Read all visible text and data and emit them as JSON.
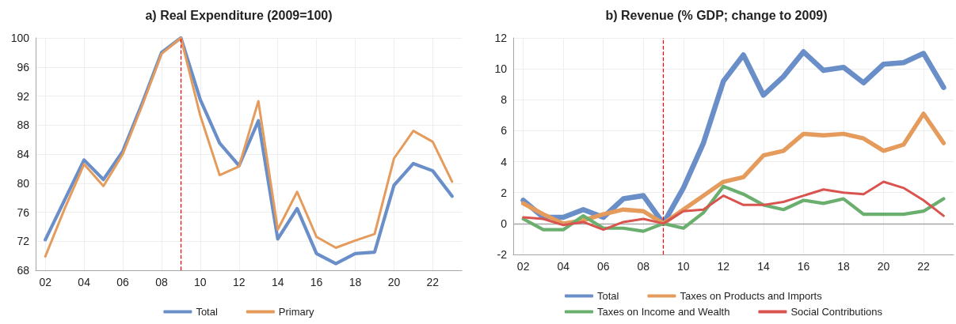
{
  "chart_data": [
    {
      "type": "line",
      "title": "a) Real Expenditure (2009=100)",
      "x": [
        2002,
        2003,
        2004,
        2005,
        2006,
        2007,
        2008,
        2009,
        2010,
        2011,
        2012,
        2013,
        2014,
        2015,
        2016,
        2017,
        2018,
        2019,
        2020,
        2021,
        2022,
        2023
      ],
      "series": [
        {
          "name": "Total",
          "color": "#6a8fc8",
          "values": [
            72.2,
            77.7,
            83.2,
            80.5,
            84.4,
            91,
            98,
            100,
            91.5,
            85.5,
            82.4,
            88.6,
            72.3,
            76.5,
            70.3,
            68.9,
            70.3,
            70.5,
            79.7,
            82.7,
            81.7,
            78.2
          ]
        },
        {
          "name": "Primary",
          "color": "#e49b5b",
          "values": [
            69.9,
            76.5,
            82.6,
            79.6,
            84,
            90.7,
            97.8,
            100,
            89.3,
            81.1,
            82.3,
            91.3,
            73.6,
            78.8,
            72.6,
            71.1,
            72.1,
            73,
            83.4,
            87.2,
            85.7,
            80.2
          ]
        }
      ],
      "xlim": [
        2001.5,
        2023.5
      ],
      "xticks": [
        {
          "value": 2002,
          "label": "02"
        },
        {
          "value": 2004,
          "label": "04"
        },
        {
          "value": 2006,
          "label": "06"
        },
        {
          "value": 2008,
          "label": "08"
        },
        {
          "value": 2010,
          "label": "10"
        },
        {
          "value": 2012,
          "label": "12"
        },
        {
          "value": 2014,
          "label": "14"
        },
        {
          "value": 2016,
          "label": "16"
        },
        {
          "value": 2018,
          "label": "18"
        },
        {
          "value": 2020,
          "label": "20"
        },
        {
          "value": 2022,
          "label": "22"
        }
      ],
      "ylim": [
        68,
        100
      ],
      "yticks": [
        68,
        72,
        76,
        80,
        84,
        88,
        92,
        96,
        100
      ],
      "ref_lines": [
        {
          "axis": "x",
          "value": 2009,
          "color": "#ff0000",
          "line_style": "dashed"
        }
      ],
      "grid": true,
      "legend": "bottom",
      "marker": "none",
      "line_style": "solid"
    },
    {
      "type": "line",
      "title": "b) Revenue (% GDP; change to 2009)",
      "x": [
        2002,
        2003,
        2004,
        2005,
        2006,
        2007,
        2008,
        2009,
        2010,
        2011,
        2012,
        2013,
        2014,
        2015,
        2016,
        2017,
        2018,
        2019,
        2020,
        2021,
        2022,
        2023
      ],
      "series": [
        {
          "name": "Total",
          "color": "#6a8fc8",
          "values": [
            1.5,
            0.4,
            0.4,
            0.9,
            0.4,
            1.6,
            1.8,
            0,
            2.3,
            5.2,
            9.2,
            10.9,
            8.3,
            9.5,
            11.1,
            9.9,
            10.1,
            9.1,
            10.3,
            10.4,
            11.0,
            8.8
          ]
        },
        {
          "name": "Taxes on Products and Imports",
          "color": "#e49b5b",
          "values": [
            1.3,
            0.6,
            0.0,
            0.2,
            0.6,
            0.9,
            0.8,
            0,
            0.9,
            1.8,
            2.7,
            3.0,
            4.4,
            4.7,
            5.8,
            5.7,
            5.8,
            5.5,
            4.7,
            5.1,
            7.1,
            5.2
          ]
        },
        {
          "name": "Taxes on Income and Wealth",
          "color": "#6aaf6e",
          "values": [
            0.3,
            -0.4,
            -0.4,
            0.5,
            -0.3,
            -0.3,
            -0.5,
            0,
            -0.3,
            0.7,
            2.4,
            1.9,
            1.2,
            0.9,
            1.5,
            1.3,
            1.6,
            0.6,
            0.6,
            0.6,
            0.8,
            1.6
          ]
        },
        {
          "name": "Social Contributions",
          "color": "#d9534f",
          "values": [
            0.4,
            0.3,
            -0.1,
            0.1,
            -0.4,
            0.1,
            0.3,
            0,
            0.8,
            0.9,
            1.8,
            1.2,
            1.2,
            1.4,
            1.8,
            2.2,
            2.0,
            1.9,
            2.7,
            2.3,
            1.5,
            0.5
          ]
        }
      ],
      "xlim": [
        2001.5,
        2023.5
      ],
      "xticks": [
        {
          "value": 2002,
          "label": "02"
        },
        {
          "value": 2004,
          "label": "04"
        },
        {
          "value": 2006,
          "label": "06"
        },
        {
          "value": 2008,
          "label": "08"
        },
        {
          "value": 2010,
          "label": "10"
        },
        {
          "value": 2012,
          "label": "12"
        },
        {
          "value": 2014,
          "label": "14"
        },
        {
          "value": 2016,
          "label": "16"
        },
        {
          "value": 2018,
          "label": "18"
        },
        {
          "value": 2020,
          "label": "20"
        },
        {
          "value": 2022,
          "label": "22"
        }
      ],
      "ylim": [
        -2,
        12
      ],
      "yticks": [
        -2,
        0,
        2,
        4,
        6,
        8,
        10,
        12
      ],
      "ref_lines": [
        {
          "axis": "x",
          "value": 2009,
          "color": "#ff0000",
          "line_style": "dashed"
        },
        {
          "axis": "y",
          "value": 0,
          "color": "#a6a6a6",
          "line_style": "solid"
        }
      ],
      "grid": true,
      "legend": "bottom",
      "marker": "none",
      "line_style": "solid"
    }
  ]
}
